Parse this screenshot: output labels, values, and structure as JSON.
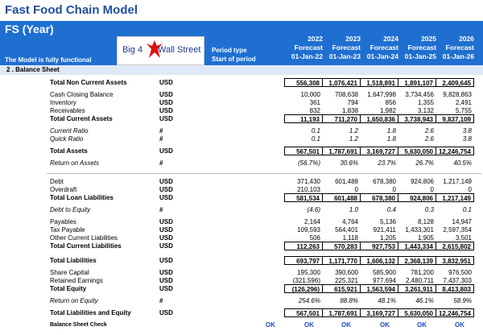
{
  "title": "Fast Food Chain Model",
  "header": {
    "fs": "FS (Year)",
    "functional": "The Model is fully functional",
    "period_type": "Period type",
    "start_of_period": "Start of period",
    "logo_left": "Big 4",
    "logo_right": "Wall Street"
  },
  "columns": [
    {
      "year": "2022",
      "type": "Forecast",
      "date": "01-Jan-22"
    },
    {
      "year": "2023",
      "type": "Forecast",
      "date": "01-Jan-23"
    },
    {
      "year": "2024",
      "type": "Forecast",
      "date": "01-Jan-24"
    },
    {
      "year": "2025",
      "type": "Forecast",
      "date": "01-Jan-25"
    },
    {
      "year": "2026",
      "type": "Forecast",
      "date": "01-Jan-26"
    }
  ],
  "section": "2 . Balance Sheet",
  "rows": [
    {
      "label": "Total Non Current Assets",
      "unit": "USD",
      "values": [
        "556,308",
        "1,076,421",
        "1,518,891",
        "1,891,107",
        "2,409,645"
      ]
    },
    {
      "label": "Cash Closing Balance",
      "unit": "USD",
      "values": [
        "10,000",
        "708,638",
        "1,647,998",
        "3,734,456",
        "9,828,863"
      ]
    },
    {
      "label": "Inventory",
      "unit": "USD",
      "values": [
        "361",
        "794",
        "856",
        "1,355",
        "2,491"
      ]
    },
    {
      "label": "Receivables",
      "unit": "USD",
      "values": [
        "832",
        "1,838",
        "1,982",
        "3,132",
        "5,755"
      ]
    },
    {
      "label": "Total Current Assets",
      "unit": "USD",
      "values": [
        "11,193",
        "711,270",
        "1,650,836",
        "3,738,943",
        "9,837,109"
      ]
    },
    {
      "label": "Current Ratio",
      "unit": "#",
      "values": [
        "0.1",
        "1.2",
        "1.8",
        "2.6",
        "3.8"
      ]
    },
    {
      "label": "Quick Ratio",
      "unit": "#",
      "values": [
        "0.1",
        "1.2",
        "1.8",
        "2.6",
        "3.8"
      ]
    },
    {
      "label": "Total Assets",
      "unit": "USD",
      "values": [
        "567,501",
        "1,787,691",
        "3,169,727",
        "5,630,050",
        "12,246,754"
      ]
    },
    {
      "label": "Return on Assets",
      "unit": "#",
      "values": [
        "(56.7%)",
        "30.6%",
        "23.7%",
        "26.7%",
        "40.5%"
      ]
    },
    {
      "label": "Debt",
      "unit": "USD",
      "values": [
        "371,430",
        "601,488",
        "678,380",
        "924,806",
        "1,217,149"
      ]
    },
    {
      "label": "Overdraft",
      "unit": "USD",
      "values": [
        "210,103",
        "0",
        "0",
        "0",
        "0"
      ]
    },
    {
      "label": "Total Loan Liabilities",
      "unit": "USD",
      "values": [
        "581,534",
        "601,488",
        "678,380",
        "924,806",
        "1,217,149"
      ]
    },
    {
      "label": "Debt to Equity",
      "unit": "#",
      "values": [
        "(4.6)",
        "1.0",
        "0.4",
        "0.3",
        "0.1"
      ]
    },
    {
      "label": "Payables",
      "unit": "USD",
      "values": [
        "2,164",
        "4,764",
        "5,136",
        "8,128",
        "14,947"
      ]
    },
    {
      "label": "Tax Payable",
      "unit": "USD",
      "values": [
        "109,593",
        "564,401",
        "921,411",
        "1,433,301",
        "2,597,354"
      ]
    },
    {
      "label": "Other Current Liabilities",
      "unit": "USD",
      "values": [
        "506",
        "1,118",
        "1,205",
        "1,905",
        "3,501"
      ]
    },
    {
      "label": "Total Current Liabilities",
      "unit": "USD",
      "values": [
        "112,263",
        "570,283",
        "927,753",
        "1,443,334",
        "2,615,802"
      ]
    },
    {
      "label": "Total Liabilities",
      "unit": "USD",
      "values": [
        "693,797",
        "1,171,770",
        "1,606,132",
        "2,368,139",
        "3,832,951"
      ]
    },
    {
      "label": "Share Capital",
      "unit": "USD",
      "values": [
        "195,300",
        "390,600",
        "585,900",
        "781,200",
        "976,500"
      ]
    },
    {
      "label": "Retained Earnings",
      "unit": "USD",
      "values": [
        "(321,596)",
        "225,321",
        "977,694",
        "2,480,711",
        "7,437,303"
      ]
    },
    {
      "label": "Total Equity",
      "unit": "USD",
      "values": [
        "(126,296)",
        "615,921",
        "1,563,594",
        "3,261,911",
        "8,413,803"
      ]
    },
    {
      "label": "Return on Equity",
      "unit": "#",
      "values": [
        "254.6%",
        "88.8%",
        "48.1%",
        "46.1%",
        "58.9%"
      ]
    },
    {
      "label": "Total Liabilities and Equity",
      "unit": "USD",
      "values": [
        "567,501",
        "1,787,691",
        "3,169,727",
        "5,630,050",
        "12,246,754"
      ]
    }
  ],
  "check": {
    "label": "Balance Sheet Check",
    "values": [
      "OK",
      "OK",
      "OK",
      "OK",
      "OK",
      "OK"
    ]
  },
  "colors": {
    "header_bg": "#1f6fd1",
    "title": "#1f4e9a",
    "ok": "#1f4ec2",
    "section_bg": "#dfe8f6"
  }
}
